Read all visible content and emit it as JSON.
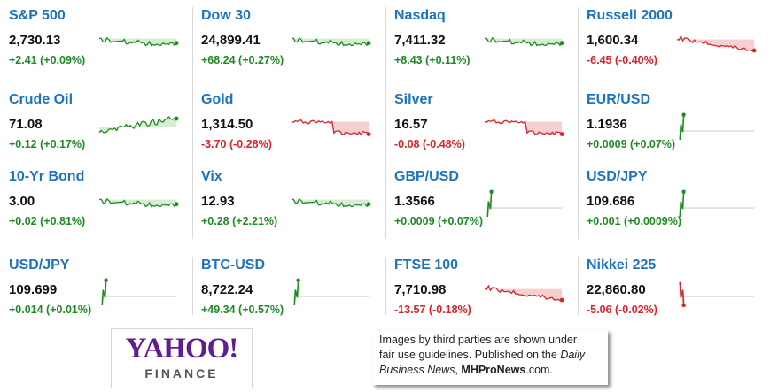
{
  "colors": {
    "up": "#1f8b24",
    "down": "#d9232a",
    "link": "#1e73be",
    "up_fill": "#d6ecd3",
    "down_fill": "#f6d0d0"
  },
  "tickers": [
    {
      "name": "S&P 500",
      "price": "2,730.13",
      "change": "+2.41 (+0.09%)",
      "dir": "up",
      "spark": "line-up"
    },
    {
      "name": "Dow 30",
      "price": "24,899.41",
      "change": "+68.24 (+0.27%)",
      "dir": "up",
      "spark": "line-up"
    },
    {
      "name": "Nasdaq",
      "price": "7,411.32",
      "change": "+8.43 (+0.11%)",
      "dir": "up",
      "spark": "line-up"
    },
    {
      "name": "Russell 2000",
      "price": "1,600.34",
      "change": "-6.45 (-0.40%)",
      "dir": "down",
      "spark": "line-down"
    },
    {
      "name": "Crude Oil",
      "price": "71.08",
      "change": "+0.12 (+0.17%)",
      "dir": "up",
      "spark": "mixed"
    },
    {
      "name": "Gold",
      "price": "1,314.50",
      "change": "-3.70 (-0.28%)",
      "dir": "down",
      "spark": "drop"
    },
    {
      "name": "Silver",
      "price": "16.57",
      "change": "-0.08 (-0.48%)",
      "dir": "down",
      "spark": "drop"
    },
    {
      "name": "EUR/USD",
      "price": "1.1936",
      "change": "+0.0009 (+0.07%)",
      "dir": "up",
      "spark": "spike"
    },
    {
      "name": "10-Yr Bond",
      "price": "3.00",
      "change": "+0.02 (+0.81%)",
      "dir": "up",
      "spark": "line-up"
    },
    {
      "name": "Vix",
      "price": "12.93",
      "change": "+0.28 (+2.21%)",
      "dir": "up",
      "spark": "line-up"
    },
    {
      "name": "GBP/USD",
      "price": "1.3566",
      "change": "+0.0009 (+0.07%)",
      "dir": "up",
      "spark": "spike"
    },
    {
      "name": "USD/JPY",
      "price": "109.686",
      "change": "+0.001 (+0.0009%)",
      "dir": "up",
      "spark": "spike"
    },
    {
      "name": "USD/JPY",
      "price": "109.699",
      "change": "+0.014 (+0.01%)",
      "dir": "up",
      "spark": "spike"
    },
    {
      "name": "BTC-USD",
      "price": "8,722.24",
      "change": "+49.34 (+0.57%)",
      "dir": "up",
      "spark": "spike"
    },
    {
      "name": "FTSE 100",
      "price": "7,710.98",
      "change": "-13.57 (-0.18%)",
      "dir": "down",
      "spark": "line-down"
    },
    {
      "name": "Nikkei 225",
      "price": "22,860.80",
      "change": "-5.06 (-0.02%)",
      "dir": "down",
      "spark": "spike-down"
    }
  ],
  "logo": {
    "yahoo": "YAHOO!",
    "finance": "FINANCE"
  },
  "notice": {
    "line1": "Images by third parties are shown under",
    "line2a": "fair use guidelines.  Published on the ",
    "daily": "Daily",
    "line3a": "Business News",
    "line3b": ", ",
    "site": "MHProNews",
    "line3c": ".com."
  }
}
